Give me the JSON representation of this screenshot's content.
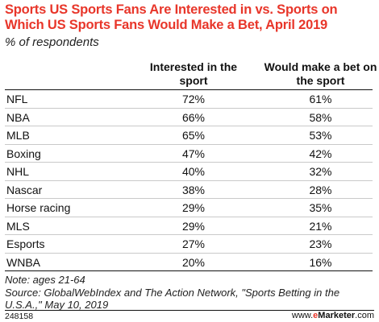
{
  "chart_data": {
    "type": "table",
    "title": "Sports US Sports Fans Are Interested in vs. Sports on Which US Sports Fans Would Make a Bet, April 2019",
    "subtitle": "% of respondents",
    "columns": [
      "",
      "Interested in the sport",
      "Would make a bet on the sport"
    ],
    "rows": [
      {
        "label": "NFL",
        "interested": "72%",
        "bet": "61%"
      },
      {
        "label": "NBA",
        "interested": "66%",
        "bet": "58%"
      },
      {
        "label": "MLB",
        "interested": "65%",
        "bet": "53%"
      },
      {
        "label": "Boxing",
        "interested": "47%",
        "bet": "42%"
      },
      {
        "label": "NHL",
        "interested": "40%",
        "bet": "32%"
      },
      {
        "label": "Nascar",
        "interested": "38%",
        "bet": "28%"
      },
      {
        "label": "Horse racing",
        "interested": "29%",
        "bet": "35%"
      },
      {
        "label": "MLS",
        "interested": "29%",
        "bet": "21%"
      },
      {
        "label": "Esports",
        "interested": "27%",
        "bet": "23%"
      },
      {
        "label": "WNBA",
        "interested": "20%",
        "bet": "16%"
      }
    ],
    "note": "Note: ages 21-64",
    "source": "Source: GlobalWebIndex and The Action Network, \"Sports Betting in the U.S.A.,\" May 10, 2019",
    "chart_id": "248158",
    "brand": {
      "prefix": "www.",
      "accent": "e",
      "name": "Marketer",
      "suffix": ".com"
    }
  },
  "colors": {
    "title": "#e8362a",
    "text": "#111111",
    "rule": "#c9c9c9"
  }
}
